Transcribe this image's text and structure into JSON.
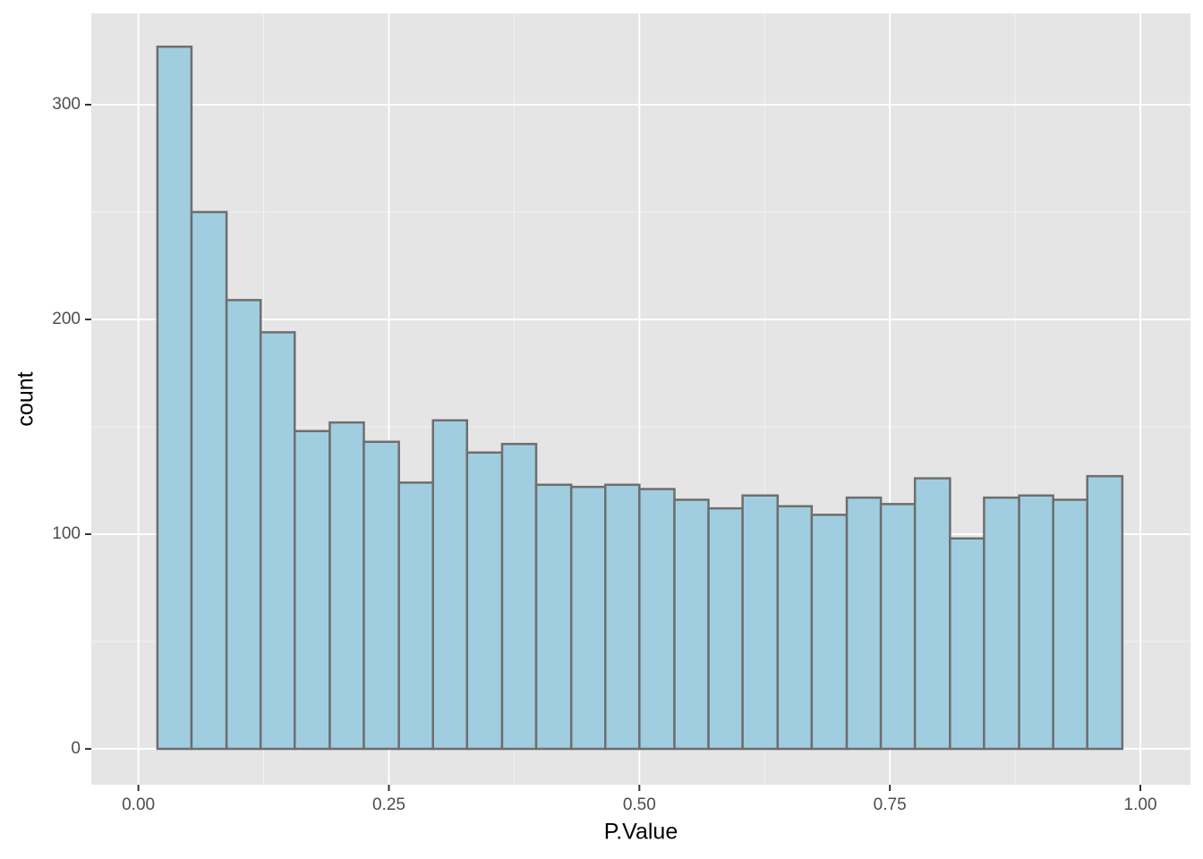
{
  "chart_data": {
    "type": "histogram",
    "x_label": "P.Value",
    "y_label": "count",
    "bins": [
      0.019,
      0.053,
      0.088,
      0.122,
      0.156,
      0.191,
      0.225,
      0.26,
      0.294,
      0.328,
      0.363,
      0.397,
      0.432,
      0.466,
      0.5,
      0.535,
      0.569,
      0.603,
      0.638,
      0.672,
      0.707,
      0.741,
      0.775,
      0.81,
      0.844,
      0.879,
      0.913,
      0.947,
      0.982
    ],
    "values": [
      327,
      250,
      209,
      194,
      148,
      152,
      143,
      124,
      153,
      138,
      142,
      123,
      122,
      123,
      121,
      116,
      112,
      118,
      113,
      109,
      117,
      114,
      126,
      98,
      117,
      118,
      116,
      127
    ],
    "color": "#a0cee0",
    "edge_color": "#6e6e6e",
    "xlim": [
      -0.047,
      1.05
    ],
    "ylim": [
      -16.7,
      342.5
    ],
    "xticks": [
      {
        "value": 0,
        "label": "0.00"
      },
      {
        "value": 0.25,
        "label": "0.25"
      },
      {
        "value": 0.5,
        "label": "0.50"
      },
      {
        "value": 0.75,
        "label": "0.75"
      },
      {
        "value": 1,
        "label": "1.00"
      }
    ],
    "yticks": [
      0,
      100,
      200,
      300
    ],
    "x_minor_ticks": [
      0.125,
      0.375,
      0.625,
      0.875
    ],
    "y_minor_ticks": [
      50,
      150,
      250
    ],
    "grid": true
  }
}
